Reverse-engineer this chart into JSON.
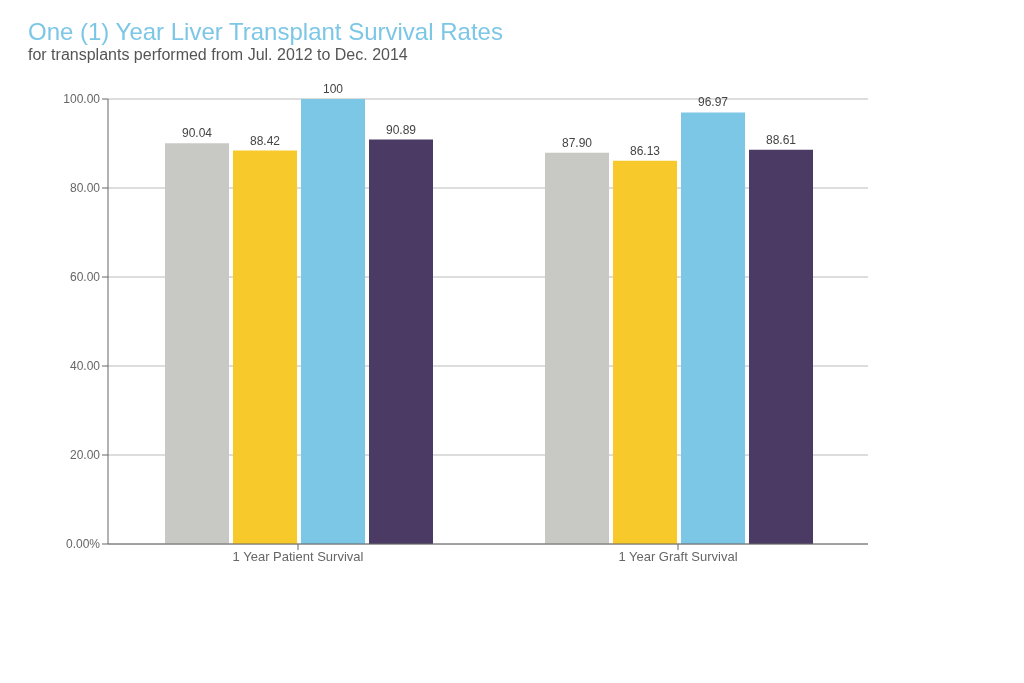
{
  "chart_data": {
    "type": "bar",
    "title": "One (1) Year Liver Transplant Survival Rates",
    "subtitle": "for transplants performed from Jul. 2012 to Dec. 2014",
    "categories": [
      "1 Year Patient Survival",
      "1 Year Graft Survival"
    ],
    "series": [
      {
        "color": "#c8c8c4",
        "values": [
          90.04,
          87.9
        ],
        "value_labels": [
          "90.04",
          "87.90"
        ]
      },
      {
        "color": "#f8c92a",
        "values": [
          88.42,
          86.13
        ],
        "value_labels": [
          "88.42",
          "86.13"
        ]
      },
      {
        "color": "#7cc6e6",
        "values": [
          100,
          96.97
        ],
        "value_labels": [
          "100",
          "96.97"
        ]
      },
      {
        "color": "#4a3a64",
        "values": [
          90.89,
          88.61
        ],
        "value_labels": [
          "90.89",
          "88.61"
        ]
      }
    ],
    "ylim": [
      0,
      100
    ],
    "yticks": [
      {
        "value": 0,
        "label": "0.00%"
      },
      {
        "value": 20,
        "label": "20.00"
      },
      {
        "value": 40,
        "label": "40.00"
      },
      {
        "value": 60,
        "label": "60.00"
      },
      {
        "value": 80,
        "label": "80.00"
      },
      {
        "value": 100,
        "label": "100.00"
      }
    ],
    "grid": "y"
  }
}
